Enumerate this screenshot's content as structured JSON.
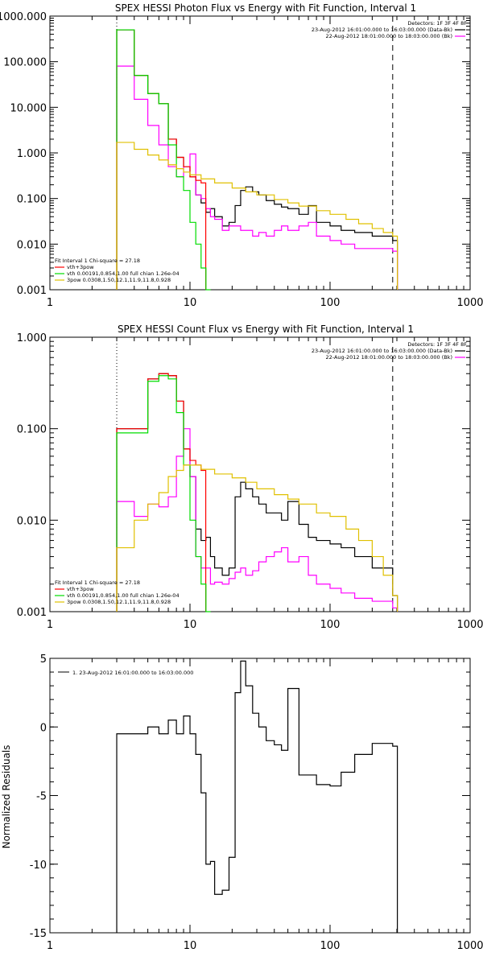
{
  "panel1": {
    "title": "SPEX HESSI Photon Flux vs Energy with Fit Function, Interval 1",
    "detectors": "Detectors: 1F 3F 4F 8F",
    "legend_right": [
      {
        "text": "23-Aug-2012 16:01:00.000 to 16:03:00.000 (Data-Bk)",
        "color": "#000000"
      },
      {
        "text": "22-Aug-2012 18:01:00.000 to 18:03:00.000 (Bk)",
        "color": "#ff00ff"
      }
    ],
    "legend_left": [
      {
        "text": "Fit Interval 1    Chi-square = 27.18",
        "color": "#000000"
      },
      {
        "text": "vth+3pow",
        "color": "#ff0000"
      },
      {
        "text": "vth 0.00191,0.854,1.00  full chian 1.26e-04",
        "color": "#00dd00"
      },
      {
        "text": "3pow 0.0308,1.50,12.1,11.9,11.8,0.928",
        "color": "#e0c000"
      }
    ],
    "yticks": [
      "1000.000",
      "100.000",
      "10.000",
      "1.000",
      "0.100",
      "0.010",
      "0.001"
    ],
    "xticks": [
      "1",
      "10",
      "100",
      "1000"
    ]
  },
  "panel2": {
    "title": "SPEX HESSI Count Flux vs Energy with Fit Function, Interval 1",
    "detectors": "Detectors: 1F 3F 4F 8F",
    "legend_right": [
      {
        "text": "23-Aug-2012 16:01:00.000 to 16:03:00.000 (Data-Bk)",
        "color": "#000000"
      },
      {
        "text": "22-Aug-2012 18:01:00.000 to 18:03:00.000 (Bk)",
        "color": "#ff00ff"
      }
    ],
    "legend_left": [
      {
        "text": "Fit Interval 1    Chi-square = 27.18",
        "color": "#000000"
      },
      {
        "text": "vth+3pow",
        "color": "#ff0000"
      },
      {
        "text": "vth 0.00191,0.854,1.00  full chian 1.26e-04",
        "color": "#00dd00"
      },
      {
        "text": "3pow 0.0308,1.50,12.1,11.9,11.8,0.928",
        "color": "#e0c000"
      }
    ],
    "yticks": [
      "1.000",
      "0.100",
      "0.010",
      "0.001"
    ],
    "xticks": [
      "1",
      "10",
      "100",
      "1000"
    ]
  },
  "panel3": {
    "ylabel": "Normalized Residuals",
    "legend": "1. 23-Aug-2012 16:01:00.000 to 16:03:00.000",
    "yticks": [
      "5",
      "0",
      "-5",
      "-10",
      "-15"
    ],
    "xticks": [
      "1",
      "10",
      "100",
      "1000"
    ]
  },
  "chart_data": [
    {
      "type": "line",
      "title": "SPEX HESSI Photon Flux vs Energy with Fit Function, Interval 1",
      "xscale": "log",
      "yscale": "log",
      "xlim": [
        1,
        1000
      ],
      "ylim": [
        0.001,
        1000
      ],
      "fit_range_keV": [
        3,
        280
      ],
      "series": [
        {
          "name": "23-Aug-2012 16:01:00.000 to 16:03:00.000 (Data-Bk)",
          "color": "#000000",
          "x": [
            3,
            4,
            5,
            6,
            7,
            8,
            9,
            10,
            11,
            12,
            13,
            14,
            15,
            17,
            19,
            21,
            23,
            25,
            28,
            31,
            35,
            40,
            45,
            50,
            60,
            70,
            80,
            100,
            120,
            150,
            200,
            280
          ],
          "y": [
            500,
            50,
            20,
            12,
            2,
            0.8,
            0.5,
            0.3,
            0.12,
            0.08,
            0.05,
            0.06,
            0.04,
            0.025,
            0.03,
            0.07,
            0.15,
            0.18,
            0.14,
            0.12,
            0.09,
            0.075,
            0.065,
            0.06,
            0.045,
            0.07,
            0.03,
            0.025,
            0.02,
            0.018,
            0.015,
            0.012
          ]
        },
        {
          "name": "22-Aug-2012 18:01:00.000 to 18:03:00.000 (Bk)",
          "color": "#ff00ff",
          "x": [
            3,
            4,
            5,
            6,
            7,
            8,
            9,
            10,
            11,
            12,
            13,
            14,
            15,
            17,
            19,
            21,
            23,
            25,
            28,
            31,
            35,
            40,
            45,
            50,
            60,
            70,
            80,
            100,
            120,
            150,
            200,
            280
          ],
          "y": [
            80,
            15,
            4,
            1.5,
            0.5,
            0.3,
            0.5,
            0.95,
            0.12,
            0.1,
            0.06,
            0.04,
            0.035,
            0.02,
            0.025,
            0.025,
            0.02,
            0.02,
            0.015,
            0.018,
            0.015,
            0.02,
            0.025,
            0.02,
            0.025,
            0.03,
            0.015,
            0.012,
            0.01,
            0.008,
            0.008,
            0.007
          ]
        },
        {
          "name": "vth+3pow",
          "color": "#ff0000",
          "x": [
            3,
            4,
            5,
            6,
            7,
            8,
            9,
            10,
            11,
            12
          ],
          "y": [
            500,
            50,
            20,
            12,
            2,
            0.8,
            0.5,
            0.3,
            0.25,
            0.22
          ]
        },
        {
          "name": "vth 0.00191,0.854,1.00  full chian 1.26e-04",
          "color": "#00dd00",
          "x": [
            3,
            4,
            5,
            6,
            7,
            8,
            9,
            10,
            11,
            12,
            13
          ],
          "y": [
            500,
            50,
            20,
            12,
            1.5,
            0.3,
            0.15,
            0.03,
            0.01,
            0.003,
            0.001
          ]
        },
        {
          "name": "3pow 0.0308,1.50,12.1,11.9,11.8,0.928",
          "color": "#e0c000",
          "x": [
            3,
            4,
            5,
            6,
            7,
            8,
            9,
            10,
            12,
            15,
            20,
            25,
            30,
            40,
            50,
            60,
            80,
            100,
            130,
            160,
            200,
            240,
            280
          ],
          "y": [
            1.7,
            1.2,
            0.9,
            0.7,
            0.55,
            0.45,
            0.38,
            0.33,
            0.27,
            0.22,
            0.17,
            0.14,
            0.12,
            0.095,
            0.08,
            0.068,
            0.054,
            0.045,
            0.035,
            0.028,
            0.022,
            0.018,
            0.015
          ]
        }
      ]
    },
    {
      "type": "line",
      "title": "SPEX HESSI Count Flux vs Energy with Fit Function, Interval 1",
      "xscale": "log",
      "yscale": "log",
      "xlim": [
        1,
        1000
      ],
      "ylim": [
        0.001,
        1
      ],
      "fit_range_keV": [
        3,
        280
      ],
      "series": [
        {
          "name": "23-Aug-2012 16:01:00.000 to 16:03:00.000 (Data-Bk)",
          "color": "#000000",
          "x": [
            3,
            4,
            5,
            6,
            7,
            8,
            9,
            10,
            11,
            12,
            13,
            14,
            15,
            17,
            19,
            21,
            23,
            25,
            28,
            31,
            35,
            40,
            45,
            50,
            60,
            70,
            80,
            100,
            120,
            150,
            200,
            280
          ],
          "y": [
            0.1,
            0.1,
            0.35,
            0.4,
            0.38,
            0.2,
            0.06,
            0.03,
            0.008,
            0.006,
            0.0065,
            0.004,
            0.003,
            0.0025,
            0.003,
            0.018,
            0.026,
            0.022,
            0.018,
            0.015,
            0.012,
            0.012,
            0.01,
            0.016,
            0.009,
            0.0065,
            0.006,
            0.0055,
            0.005,
            0.004,
            0.003,
            0.0015
          ]
        },
        {
          "name": "22-Aug-2012 18:01:00.000 to 18:03:00.000 (Bk)",
          "color": "#ff00ff",
          "x": [
            3,
            4,
            5,
            6,
            7,
            8,
            9,
            10,
            11,
            12,
            13,
            14,
            15,
            17,
            19,
            21,
            23,
            25,
            28,
            31,
            35,
            40,
            45,
            50,
            60,
            70,
            80,
            100,
            120,
            150,
            200,
            280
          ],
          "y": [
            0.016,
            0.011,
            0.015,
            0.014,
            0.018,
            0.05,
            0.1,
            0.03,
            0.004,
            0.003,
            0.003,
            0.002,
            0.0021,
            0.002,
            0.0023,
            0.0027,
            0.003,
            0.0025,
            0.0028,
            0.0035,
            0.004,
            0.0045,
            0.005,
            0.0035,
            0.004,
            0.0025,
            0.002,
            0.0018,
            0.0016,
            0.0014,
            0.0013,
            0.0011
          ]
        },
        {
          "name": "vth+3pow",
          "color": "#ff0000",
          "x": [
            3,
            4,
            5,
            6,
            7,
            8,
            9,
            10,
            11,
            12
          ],
          "y": [
            0.1,
            0.1,
            0.35,
            0.4,
            0.38,
            0.2,
            0.06,
            0.045,
            0.04,
            0.035
          ]
        },
        {
          "name": "vth 0.00191,0.854,1.00  full chian 1.26e-04",
          "color": "#00dd00",
          "x": [
            3,
            4,
            5,
            6,
            7,
            8,
            9,
            10,
            11,
            12,
            13
          ],
          "y": [
            0.09,
            0.09,
            0.33,
            0.38,
            0.35,
            0.15,
            0.04,
            0.01,
            0.004,
            0.002,
            0.001
          ]
        },
        {
          "name": "3pow 0.0308,1.50,12.1,11.9,11.8,0.928",
          "color": "#e0c000",
          "x": [
            3,
            4,
            5,
            6,
            7,
            8,
            9,
            10,
            12,
            15,
            20,
            25,
            30,
            40,
            50,
            60,
            80,
            100,
            130,
            160,
            200,
            240,
            280
          ],
          "y": [
            0.005,
            0.01,
            0.015,
            0.02,
            0.03,
            0.035,
            0.04,
            0.04,
            0.036,
            0.032,
            0.029,
            0.026,
            0.022,
            0.019,
            0.017,
            0.015,
            0.012,
            0.011,
            0.008,
            0.006,
            0.004,
            0.0025,
            0.0015
          ]
        }
      ]
    },
    {
      "type": "line",
      "title": "",
      "ylabel": "Normalized Residuals",
      "xscale": "log",
      "xlim": [
        1,
        1000
      ],
      "ylim": [
        -15,
        5
      ],
      "series": [
        {
          "name": "1. 23-Aug-2012 16:01:00.000 to 16:03:00.000",
          "color": "#000000",
          "x": [
            3,
            4,
            5,
            6,
            7,
            8,
            9,
            10,
            11,
            12,
            13,
            14,
            15,
            17,
            19,
            21,
            23,
            25,
            28,
            31,
            35,
            40,
            45,
            50,
            60,
            70,
            80,
            100,
            120,
            150,
            200,
            280
          ],
          "y": [
            -0.5,
            -0.5,
            0,
            -0.5,
            0.5,
            -0.5,
            0.8,
            -0.5,
            -2,
            -4.8,
            -10,
            -9.8,
            -12.2,
            -11.9,
            -9.5,
            2.5,
            4.8,
            3,
            1,
            0,
            -1,
            -1.3,
            -1.7,
            2.8,
            -3.5,
            -3.5,
            -4.2,
            -4.3,
            -3.3,
            -2,
            -1.2,
            -1.4
          ]
        }
      ]
    }
  ]
}
